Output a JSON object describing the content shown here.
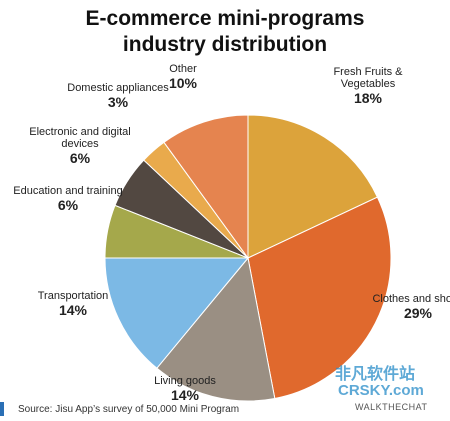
{
  "chart_data": {
    "type": "pie",
    "title": "E-commerce mini-programs industry distribution",
    "categories": [
      "Fresh Fruits & Vegetables",
      "Clothes and shoes",
      "Living goods",
      "Transportation",
      "Education and training",
      "Electronic and digital devices",
      "Domestic appliances",
      "Other"
    ],
    "values": [
      18,
      29,
      14,
      14,
      6,
      6,
      3,
      10
    ],
    "value_labels": [
      "18%",
      "29%",
      "14%",
      "14%",
      "6%",
      "6%",
      "3%",
      "10%"
    ],
    "colors": [
      "#dca33b",
      "#e0692d",
      "#9a8f83",
      "#7cb9e5",
      "#a5a84b",
      "#524841",
      "#e9aa4c",
      "#e5844f"
    ],
    "source": "Source: Jisu App’s survey of 50,000 Mini Program",
    "credit": "WALKTHECHAT",
    "watermark": [
      "非凡软件站",
      "CRSKY.com"
    ]
  }
}
